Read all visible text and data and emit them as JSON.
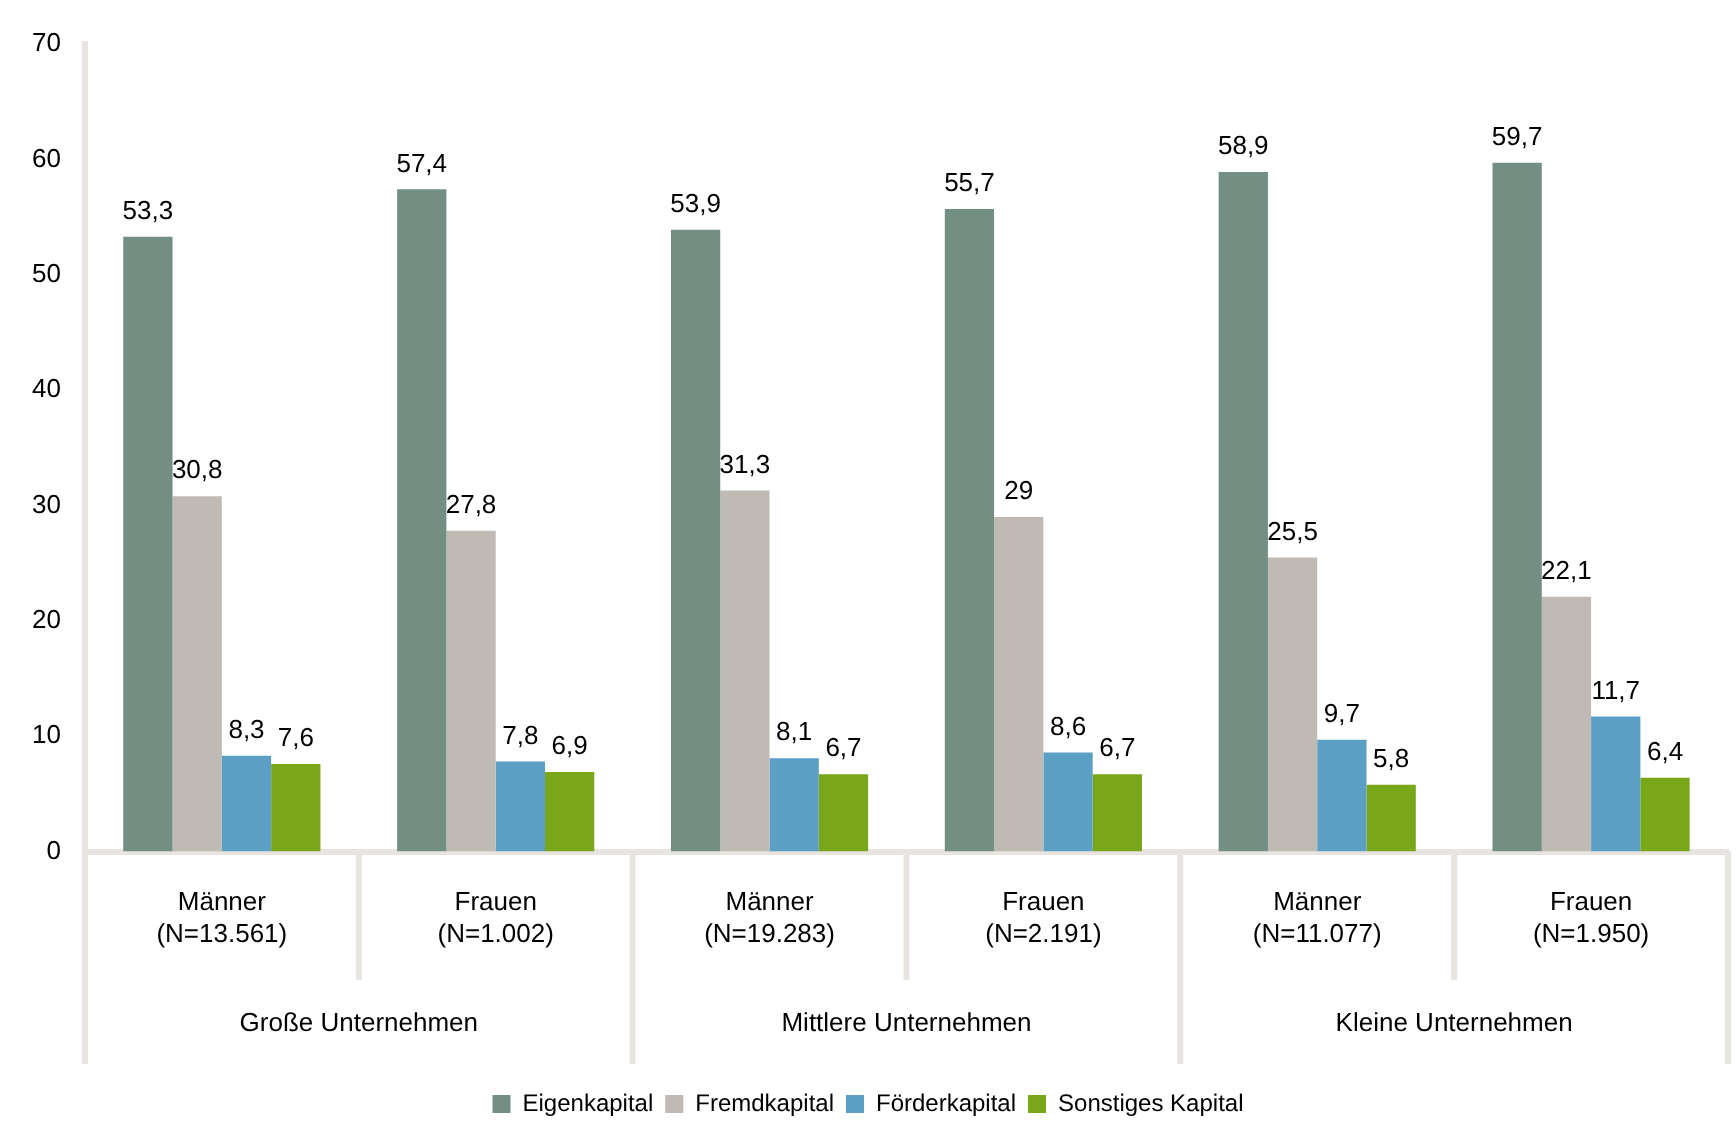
{
  "chart_data": {
    "type": "bar",
    "categories": [
      "Männer\n(N=13.561)",
      "Frauen\n(N=1.002)",
      "Männer\n(N=19.283)",
      "Frauen\n(N=2.191)",
      "Männer\n(N=11.077)",
      "Frauen\n(N=1.950)"
    ],
    "annotations": [
      "Große Unternehmen",
      "Mittlere Unternehmen",
      "Kleine Unternehmen"
    ],
    "series": [
      {
        "name": "Eigenkapital",
        "color": "#738f84",
        "values": [
          53.3,
          57.4,
          53.9,
          55.7,
          58.9,
          59.7
        ],
        "value_labels": [
          "53,3",
          "57,4",
          "53,9",
          "55,7",
          "58,9",
          "59,7"
        ]
      },
      {
        "name": "Fremdkapital",
        "color": "#c0bab5",
        "values": [
          30.8,
          27.8,
          31.3,
          29,
          25.5,
          22.1
        ],
        "value_labels": [
          "30,8",
          "27,8",
          "31,3",
          "29",
          "25,5",
          "22,1"
        ]
      },
      {
        "name": "Förderkapital",
        "color": "#5b9fc4",
        "values": [
          8.3,
          7.8,
          8.1,
          8.6,
          9.7,
          11.7
        ],
        "value_labels": [
          "8,3",
          "7,8",
          "8,1",
          "8,6",
          "9,7",
          "11,7"
        ]
      },
      {
        "name": "Sonstiges Kapital",
        "color": "#7aa61a",
        "values": [
          7.6,
          6.9,
          6.7,
          6.7,
          5.8,
          6.4
        ],
        "value_labels": [
          "7,6",
          "6,9",
          "6,7",
          "6,7",
          "5,8",
          "6,4"
        ]
      }
    ],
    "ylim": [
      0,
      70
    ],
    "yticks": [
      0,
      10,
      20,
      30,
      40,
      50,
      60,
      70
    ],
    "grid": false,
    "legend": "bottom"
  }
}
